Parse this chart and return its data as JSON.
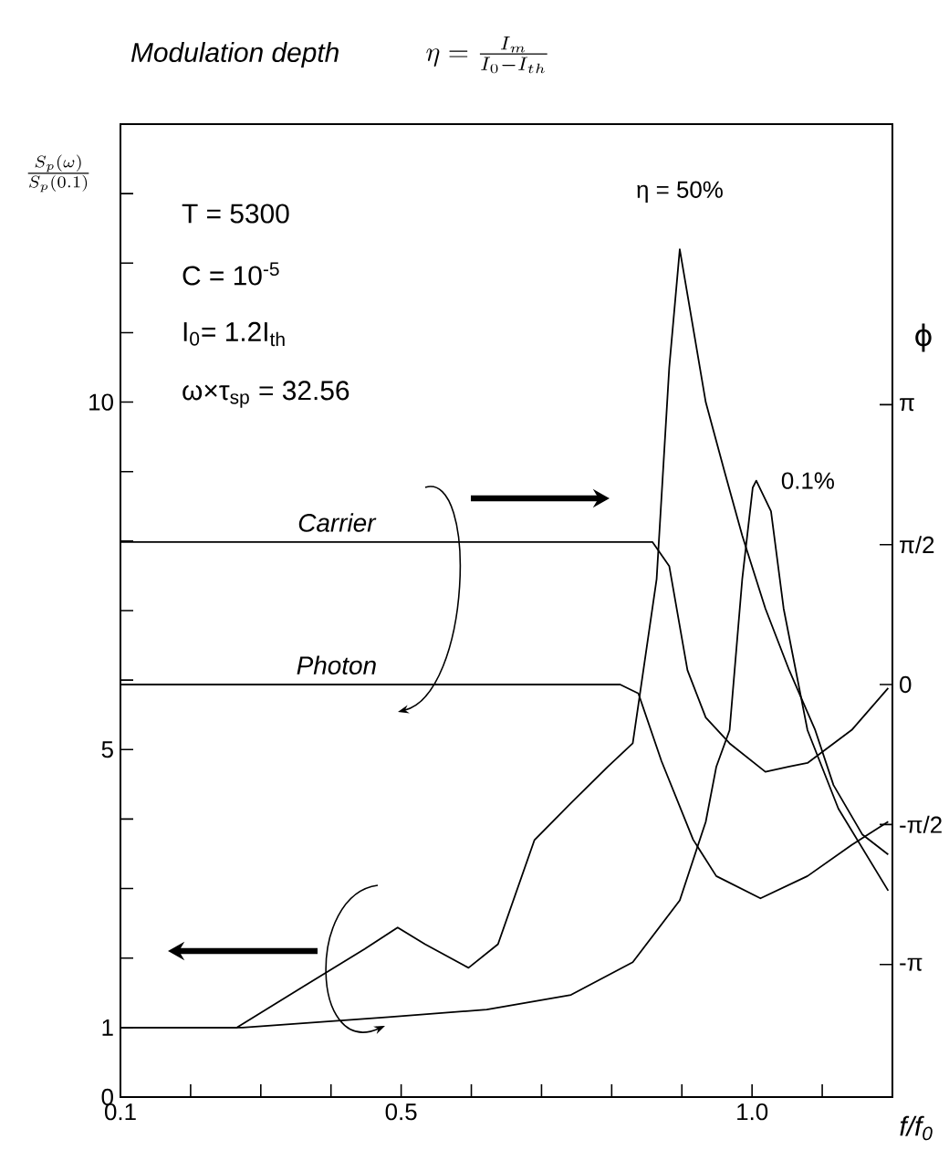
{
  "chart_data": {
    "type": "line",
    "title": "Modulation depth",
    "subtitle": "\\eta = \\frac{I_m}{I_0 - I_{th}}",
    "xlabel": "f/f$_{0}$",
    "ylabel": "\\frac{S_p(\\omega)}{S_p(0.1)}",
    "y2label": "ϕ",
    "annotations": [
      "T = 5300",
      "C = 10$^{-5}$",
      "I$_{0}$= 1.2I$_{th}$",
      "ω×τ$_{sp}$ = 32.56"
    ],
    "xlim": [
      0.1,
      1.2
    ],
    "ylim": [
      0,
      14
    ],
    "y2lim": [
      -4.63,
      6.29
    ],
    "xticks": [
      0.1,
      {
        "value": 0.2,
        "label": null
      },
      {
        "value": 0.3,
        "label": null
      },
      {
        "value": 0.4,
        "label": null
      },
      0.5,
      {
        "value": 0.6,
        "label": null
      },
      {
        "value": 0.7,
        "label": null
      },
      {
        "value": 0.8,
        "label": null
      },
      {
        "value": 0.9,
        "label": null
      },
      {
        "value": 1.0,
        "label": "1.0"
      },
      {
        "value": 1.1,
        "label": null
      }
    ],
    "yticks": [
      0,
      1,
      {
        "value": 2,
        "label": null
      },
      {
        "value": 3,
        "label": null
      },
      {
        "value": 4,
        "label": null
      },
      5,
      {
        "value": 6,
        "label": null
      },
      {
        "value": 7,
        "label": null
      },
      {
        "value": 8,
        "label": null
      },
      {
        "value": 9,
        "label": null
      },
      10,
      {
        "value": 11,
        "label": null
      },
      {
        "value": 12,
        "label": null
      },
      {
        "value": 13,
        "label": null
      }
    ],
    "y2ticks": [
      {
        "value": 3.1416,
        "label": "π"
      },
      {
        "value": 1.5708,
        "label": "π/2"
      },
      0,
      {
        "value": -1.5708,
        "label": "-π/2"
      },
      {
        "value": -3.1416,
        "label": "-π"
      }
    ],
    "marker": "none",
    "line_style": "solid",
    "series": [
      {
        "name": "η = 50%",
        "color": "#000000",
        "x": [
          0.1,
          0.266,
          0.362,
          0.448,
          0.495,
          0.534,
          0.596,
          0.638,
          0.69,
          0.742,
          0.794,
          0.83,
          0.864,
          0.882,
          0.897,
          0.934,
          0.96,
          0.986,
          1.019,
          1.053,
          1.09,
          1.116,
          1.157,
          1.194
        ],
        "values": [
          1.0,
          1.0,
          1.6,
          2.13,
          2.44,
          2.2,
          1.86,
          2.2,
          3.7,
          4.23,
          4.75,
          5.09,
          7.45,
          10.5,
          12.2,
          10.0,
          9.03,
          8.08,
          7.03,
          6.14,
          5.28,
          4.49,
          3.78,
          3.49
        ]
      },
      {
        "name": "0.1%",
        "color": "#000000",
        "x": [
          0.1,
          0.274,
          0.482,
          0.622,
          0.742,
          0.83,
          0.897,
          0.934,
          0.949,
          0.968,
          0.986,
          1.001,
          1.006,
          1.027,
          1.045,
          1.079,
          1.123,
          1.194
        ],
        "values": [
          1.0,
          1.0,
          1.15,
          1.26,
          1.47,
          1.94,
          2.83,
          3.96,
          4.75,
          5.28,
          7.45,
          8.77,
          8.87,
          8.43,
          7.03,
          5.28,
          4.15,
          2.97
        ]
      },
      {
        "name": "Carrier",
        "color": "#000000",
        "axis": "y2",
        "x": [
          0.1,
          0.858,
          0.882,
          0.908,
          0.934,
          0.968,
          1.019,
          1.053,
          1.079,
          1.142,
          1.194
        ],
        "values": [
          1.6,
          1.6,
          1.33,
          0.16,
          -0.37,
          -0.66,
          -0.98,
          -0.92,
          -0.88,
          -0.51,
          -0.04
        ]
      },
      {
        "name": "Photon",
        "color": "#000000",
        "axis": "y2",
        "x": [
          0.1,
          0.812,
          0.838,
          0.871,
          0.916,
          0.949,
          1.012,
          1.079,
          1.142,
          1.194
        ],
        "values": [
          0.0,
          0.0,
          -0.1,
          -0.86,
          -1.74,
          -2.15,
          -2.4,
          -2.15,
          -1.8,
          -1.54
        ]
      }
    ]
  }
}
